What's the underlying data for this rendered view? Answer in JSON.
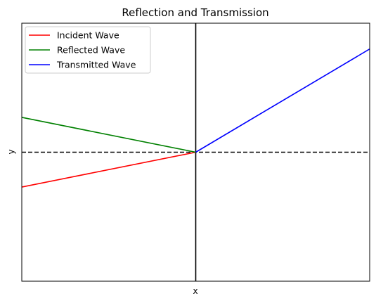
{
  "chart_data": {
    "type": "line",
    "title": "Reflection and Transmission",
    "xlabel": "x",
    "ylabel": "y",
    "xlim": [
      -1,
      1
    ],
    "ylim": [
      -1,
      1
    ],
    "ticks_visible": false,
    "grid": false,
    "legend_position": "top-left",
    "series": [
      {
        "name": "Incident Wave",
        "color": "#ff0000",
        "x": [
          -1,
          0
        ],
        "y": [
          -0.27,
          0
        ]
      },
      {
        "name": "Reflected Wave",
        "color": "#008000",
        "x": [
          -1,
          0
        ],
        "y": [
          0.27,
          0
        ]
      },
      {
        "name": "Transmitted Wave",
        "color": "#0000ff",
        "x": [
          0,
          1
        ],
        "y": [
          0,
          0.8
        ]
      }
    ],
    "reference_lines": [
      {
        "orientation": "horizontal",
        "value": 0,
        "style": "dashed",
        "color": "#000000"
      },
      {
        "orientation": "vertical",
        "value": 0,
        "style": "solid",
        "color": "#000000"
      }
    ]
  }
}
